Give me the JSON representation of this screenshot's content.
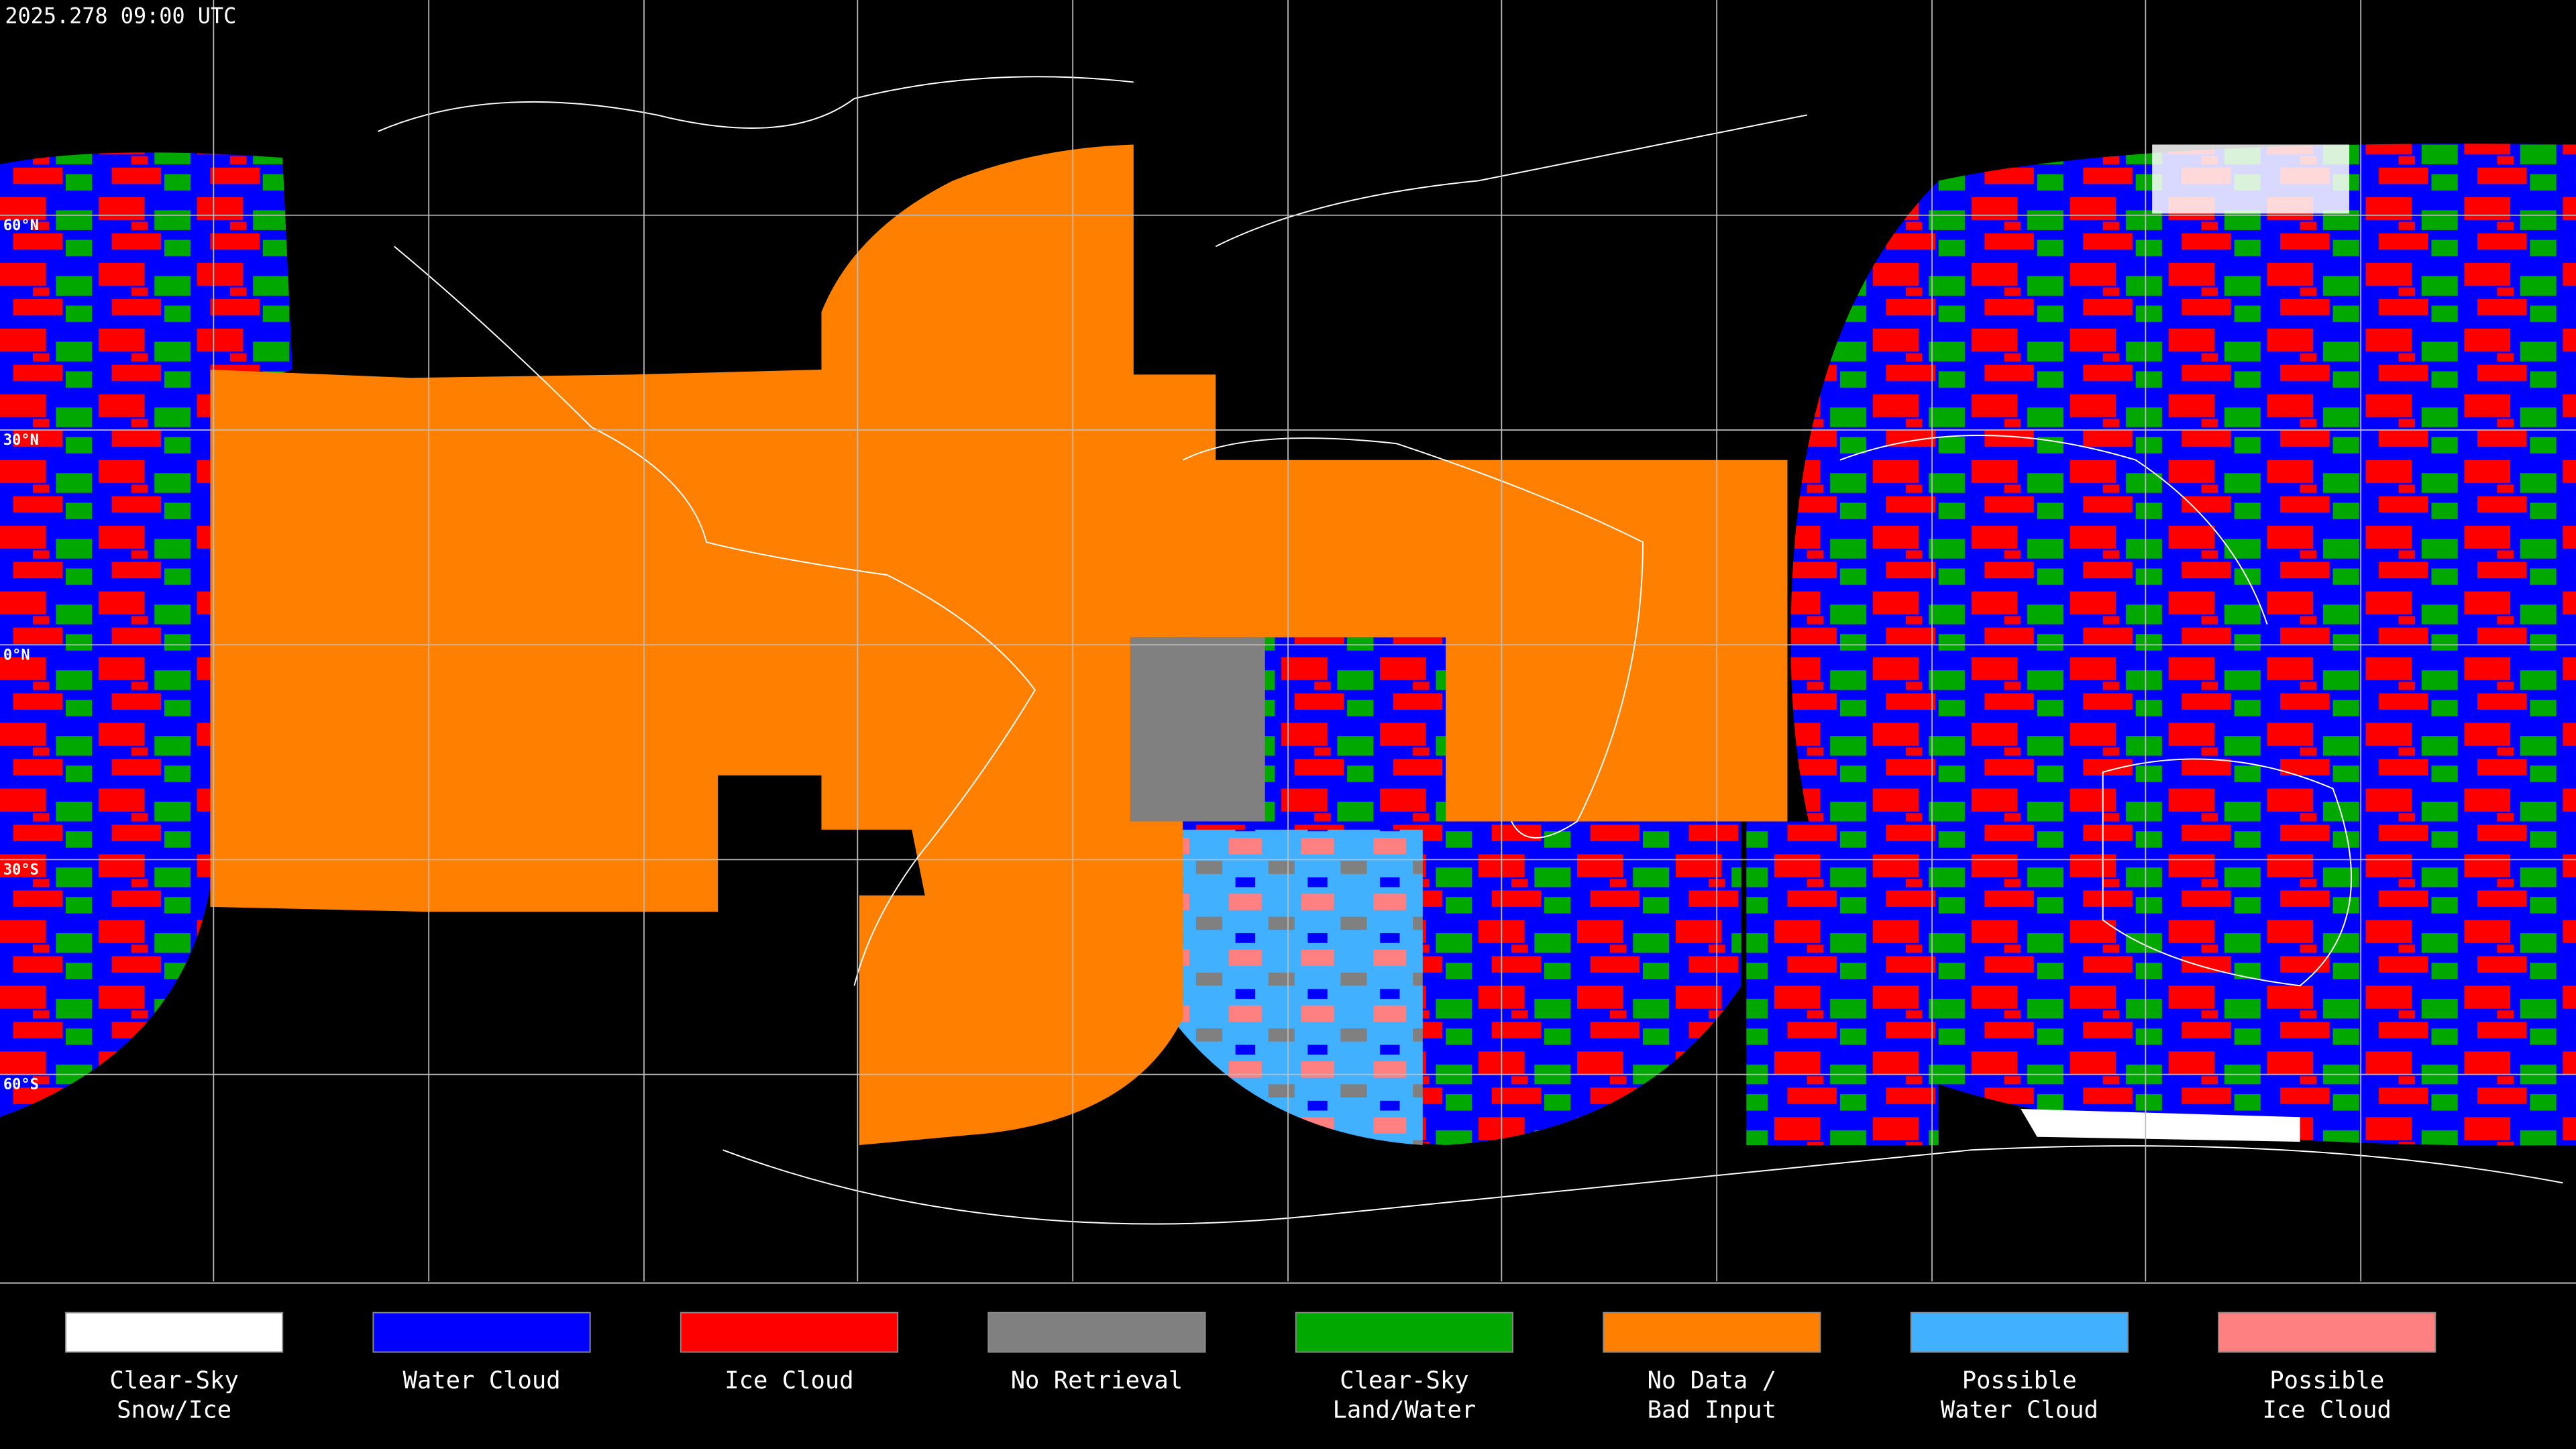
{
  "timestamp": "2025.278 09:00 UTC",
  "latitude_labels": [
    "60°N",
    "30°N",
    "0°N",
    "30°S",
    "60°S"
  ],
  "legend": [
    {
      "lines": [
        "Clear-Sky",
        "Snow/Ice"
      ],
      "color": "#ffffff"
    },
    {
      "lines": [
        "Water Cloud"
      ],
      "color": "#0000ff"
    },
    {
      "lines": [
        "Ice Cloud"
      ],
      "color": "#ff0000"
    },
    {
      "lines": [
        "No Retrieval"
      ],
      "color": "#808080"
    },
    {
      "lines": [
        "Clear-Sky",
        "Land/Water"
      ],
      "color": "#00a800"
    },
    {
      "lines": [
        "No Data /",
        "Bad Input"
      ],
      "color": "#ff8000"
    },
    {
      "lines": [
        "Possible",
        "Water Cloud"
      ],
      "color": "#40b0ff"
    },
    {
      "lines": [
        "Possible",
        "Ice Cloud"
      ],
      "color": "#ff8080"
    }
  ]
}
